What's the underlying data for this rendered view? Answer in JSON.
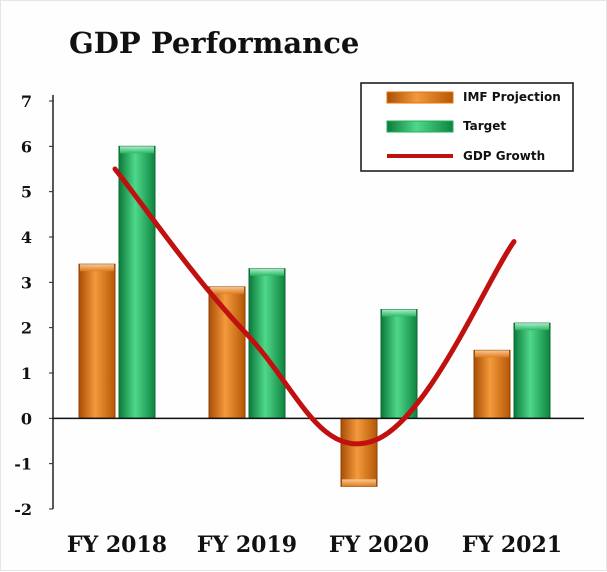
{
  "chart_data": {
    "type": "bar",
    "title": "GDP Performance",
    "xlabel": "",
    "ylabel": "",
    "categories": [
      "FY 2018",
      "FY 2019",
      "FY 2020",
      "FY 2021"
    ],
    "ylim": [
      -2,
      7
    ],
    "yticks": [
      "7",
      "6",
      "5",
      "4",
      "3",
      "2",
      "1",
      "0",
      "-1",
      "-2"
    ],
    "series": [
      {
        "name": "IMF Projection",
        "kind": "bar",
        "color": "#E8720C",
        "values": [
          3.4,
          2.9,
          -1.5,
          1.5
        ]
      },
      {
        "name": "Target",
        "kind": "bar",
        "color": "#1DB05A",
        "values": [
          6.0,
          3.3,
          2.4,
          2.1
        ]
      },
      {
        "name": "GDP Growth",
        "kind": "line",
        "color": "#C01010",
        "values": [
          5.5,
          1.9,
          -0.5,
          3.9
        ]
      }
    ],
    "legend_position": "top-right",
    "grid": false
  }
}
